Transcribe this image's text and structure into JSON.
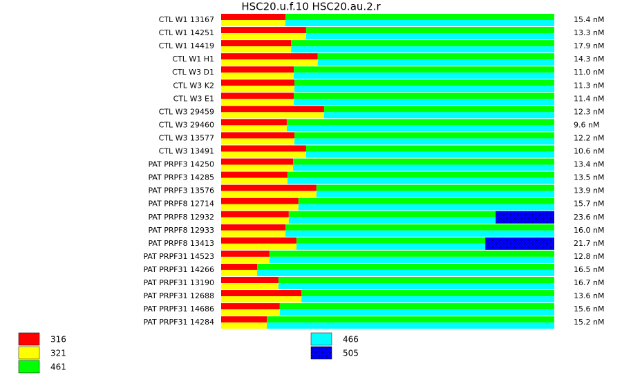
{
  "chart_data": {
    "type": "stacked-bar",
    "title": "HSC20.u.f.10  HSC20.au.2.r",
    "categories": [
      "CTL W1 13167",
      "CTL W1 14251",
      "CTL W1 14419",
      "CTL W1 H1",
      "CTL W3 D1",
      "CTL W3 K2",
      "CTL W3 E1",
      "CTL W3 29459",
      "CTL W3 29460",
      "CTL W3 13577",
      "CTL W3 13491",
      "PAT PRPF3 14250",
      "PAT PRPF3 14285",
      "PAT PRPF3 13576",
      "PAT PRPF8 12714",
      "PAT PRPF8 12932",
      "PAT PRPF8 12933",
      "PAT PRPF8 13413",
      "PAT PRPF31 14523",
      "PAT PRPF31 14266",
      "PAT PRPF31 13190",
      "PAT PRPF31 12688",
      "PAT PRPF31 14686",
      "PAT PRPF31 14284"
    ],
    "row_labels": [
      "15.4 nM",
      "13.3 nM",
      "17.9 nM",
      "14.3 nM",
      "11.0 nM",
      "11.3 nM",
      "11.4 nM",
      "12.3 nM",
      "9.6 nM",
      "12.2 nM",
      "10.6 nM",
      "13.4 nM",
      "13.5 nM",
      "13.9 nM",
      "15.7 nM",
      "23.6 nM",
      "16.0 nM",
      "21.7 nM",
      "12.8 nM",
      "16.5 nM",
      "16.7 nM",
      "13.6 nM",
      "15.6 nM",
      "15.2 nM"
    ],
    "xlim": [
      0,
      100
    ],
    "series": [
      {
        "name": "316",
        "color": "#ff0000",
        "stack": "top",
        "values": [
          19.3,
          25.5,
          21.0,
          29.0,
          21.8,
          22.0,
          21.8,
          30.9,
          19.7,
          22.0,
          25.5,
          21.6,
          19.9,
          28.6,
          23.2,
          20.3,
          19.3,
          22.6,
          14.5,
          10.8,
          17.2,
          24.1,
          17.6,
          13.7
        ]
      },
      {
        "name": "321",
        "color": "#ffff00",
        "stack": "bottom",
        "values": [
          19.3,
          25.5,
          21.0,
          29.0,
          21.8,
          22.0,
          21.8,
          30.9,
          19.7,
          22.0,
          25.5,
          21.6,
          19.9,
          28.6,
          23.2,
          20.3,
          19.3,
          22.6,
          14.5,
          10.8,
          17.2,
          24.1,
          17.6,
          13.7
        ]
      },
      {
        "name": "461",
        "color": "#00ff00",
        "stack": "top",
        "values": [
          80.7,
          74.5,
          79.0,
          71.0,
          78.2,
          78.0,
          78.2,
          69.1,
          80.3,
          78.0,
          74.5,
          78.4,
          80.1,
          71.4,
          76.8,
          62.1,
          80.7,
          56.7,
          85.5,
          89.2,
          82.8,
          75.9,
          82.4,
          86.3
        ]
      },
      {
        "name": "466",
        "color": "#00ffff",
        "stack": "bottom",
        "values": [
          80.7,
          74.5,
          79.0,
          71.0,
          78.2,
          78.0,
          78.2,
          69.1,
          80.3,
          78.0,
          74.5,
          78.4,
          80.1,
          71.4,
          76.8,
          62.1,
          80.7,
          56.7,
          85.5,
          89.2,
          82.8,
          75.9,
          82.4,
          86.3
        ]
      },
      {
        "name": "505",
        "color": "#0000ff",
        "stack": "full",
        "hatched": true,
        "values": [
          null,
          null,
          null,
          null,
          null,
          null,
          null,
          null,
          null,
          null,
          null,
          null,
          null,
          null,
          null,
          17.6,
          null,
          20.7,
          null,
          null,
          null,
          null,
          null,
          null
        ]
      }
    ]
  }
}
